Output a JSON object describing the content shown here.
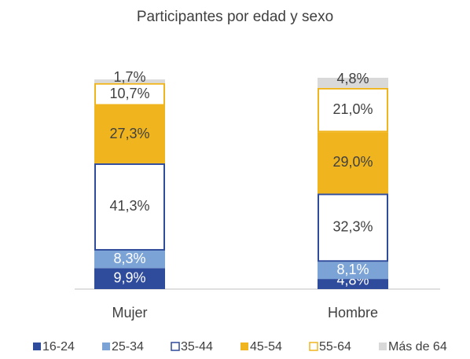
{
  "chart_data": {
    "type": "stacked_bar",
    "title": "Participantes por edad y sexo",
    "categories": [
      "Mujer",
      "Hombre"
    ],
    "ylim": [
      0,
      100
    ],
    "series": [
      {
        "name": "16-24",
        "color": "#2f4b9c",
        "hollow": false,
        "label_color": "#ffffff",
        "values": [
          9.9,
          4.8
        ],
        "value_labels": [
          "9,9%",
          "4,8%"
        ]
      },
      {
        "name": "25-34",
        "color": "#7ca3d5",
        "hollow": false,
        "label_color": "#ffffff",
        "values": [
          8.3,
          8.1
        ],
        "value_labels": [
          "8,3%",
          "8,1%"
        ]
      },
      {
        "name": "35-44",
        "color": "#2f4b9c",
        "hollow": true,
        "label_color": "#404040",
        "values": [
          41.3,
          32.3
        ],
        "value_labels": [
          "41,3%",
          "32,3%"
        ]
      },
      {
        "name": "45-54",
        "color": "#f0b51e",
        "hollow": false,
        "label_color": "#404040",
        "values": [
          27.3,
          29.0
        ],
        "value_labels": [
          "27,3%",
          "29,0%"
        ]
      },
      {
        "name": "55-64",
        "color": "#f0b51e",
        "hollow": true,
        "label_color": "#404040",
        "values": [
          10.7,
          21.0
        ],
        "value_labels": [
          "10,7%",
          "21,0%"
        ]
      },
      {
        "name": "Más de 64",
        "color": "#d9d9d9",
        "hollow": false,
        "label_color": "#404040",
        "values": [
          1.7,
          4.8
        ],
        "value_labels": [
          "1,7%",
          "4,8%"
        ]
      }
    ]
  }
}
